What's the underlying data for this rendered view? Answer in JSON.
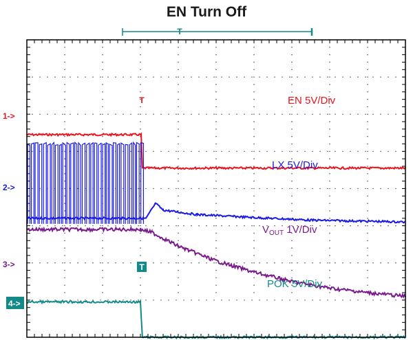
{
  "chart_data": {
    "type": "line",
    "title": "EN Turn Off",
    "xlabel": "",
    "ylabel": "",
    "grid": true,
    "x_divisions": 10,
    "y_divisions": 8,
    "trigger_marker": "T",
    "series": [
      {
        "name": "EN",
        "label": "EN 5V/Div",
        "channel_marker": "1->",
        "color": "#e8141e",
        "values": [
          [
            0,
            5.45
          ],
          [
            3.02,
            5.45
          ],
          [
            3.05,
            4.55
          ],
          [
            10,
            4.55
          ]
        ]
      },
      {
        "name": "LX",
        "label": "LX 5V/Div",
        "channel_marker": "2->",
        "color": "#1a1ae6",
        "values": [
          [
            0,
            3.2
          ],
          [
            3.15,
            3.2
          ],
          [
            3.4,
            3.6
          ],
          [
            3.6,
            3.42
          ],
          [
            4.5,
            3.3
          ],
          [
            6,
            3.22
          ],
          [
            7.5,
            3.15
          ],
          [
            10,
            3.1
          ]
        ]
      },
      {
        "name": "VOUT",
        "label_main": "V",
        "label_sub": "OUT",
        "label_suffix": " 1V/Div",
        "color": "#7a1a8c",
        "values": [
          [
            0,
            2.9
          ],
          [
            3.0,
            2.9
          ],
          [
            3.3,
            2.82
          ],
          [
            4.0,
            2.45
          ],
          [
            5.0,
            2.05
          ],
          [
            6.0,
            1.75
          ],
          [
            7.0,
            1.5
          ],
          [
            8.0,
            1.32
          ],
          [
            9.0,
            1.2
          ],
          [
            10,
            1.1
          ]
        ]
      },
      {
        "name": "POK",
        "label": "POK 5V/Div",
        "channel_marker": "3->",
        "color": "#138a8a",
        "values": [
          [
            0,
            0.95
          ],
          [
            3.0,
            0.95
          ],
          [
            3.05,
            0.0
          ],
          [
            10,
            0.0
          ]
        ]
      }
    ],
    "extra_markers": [
      {
        "text": "4->",
        "boxed": true,
        "color": "#138a8a"
      }
    ]
  }
}
